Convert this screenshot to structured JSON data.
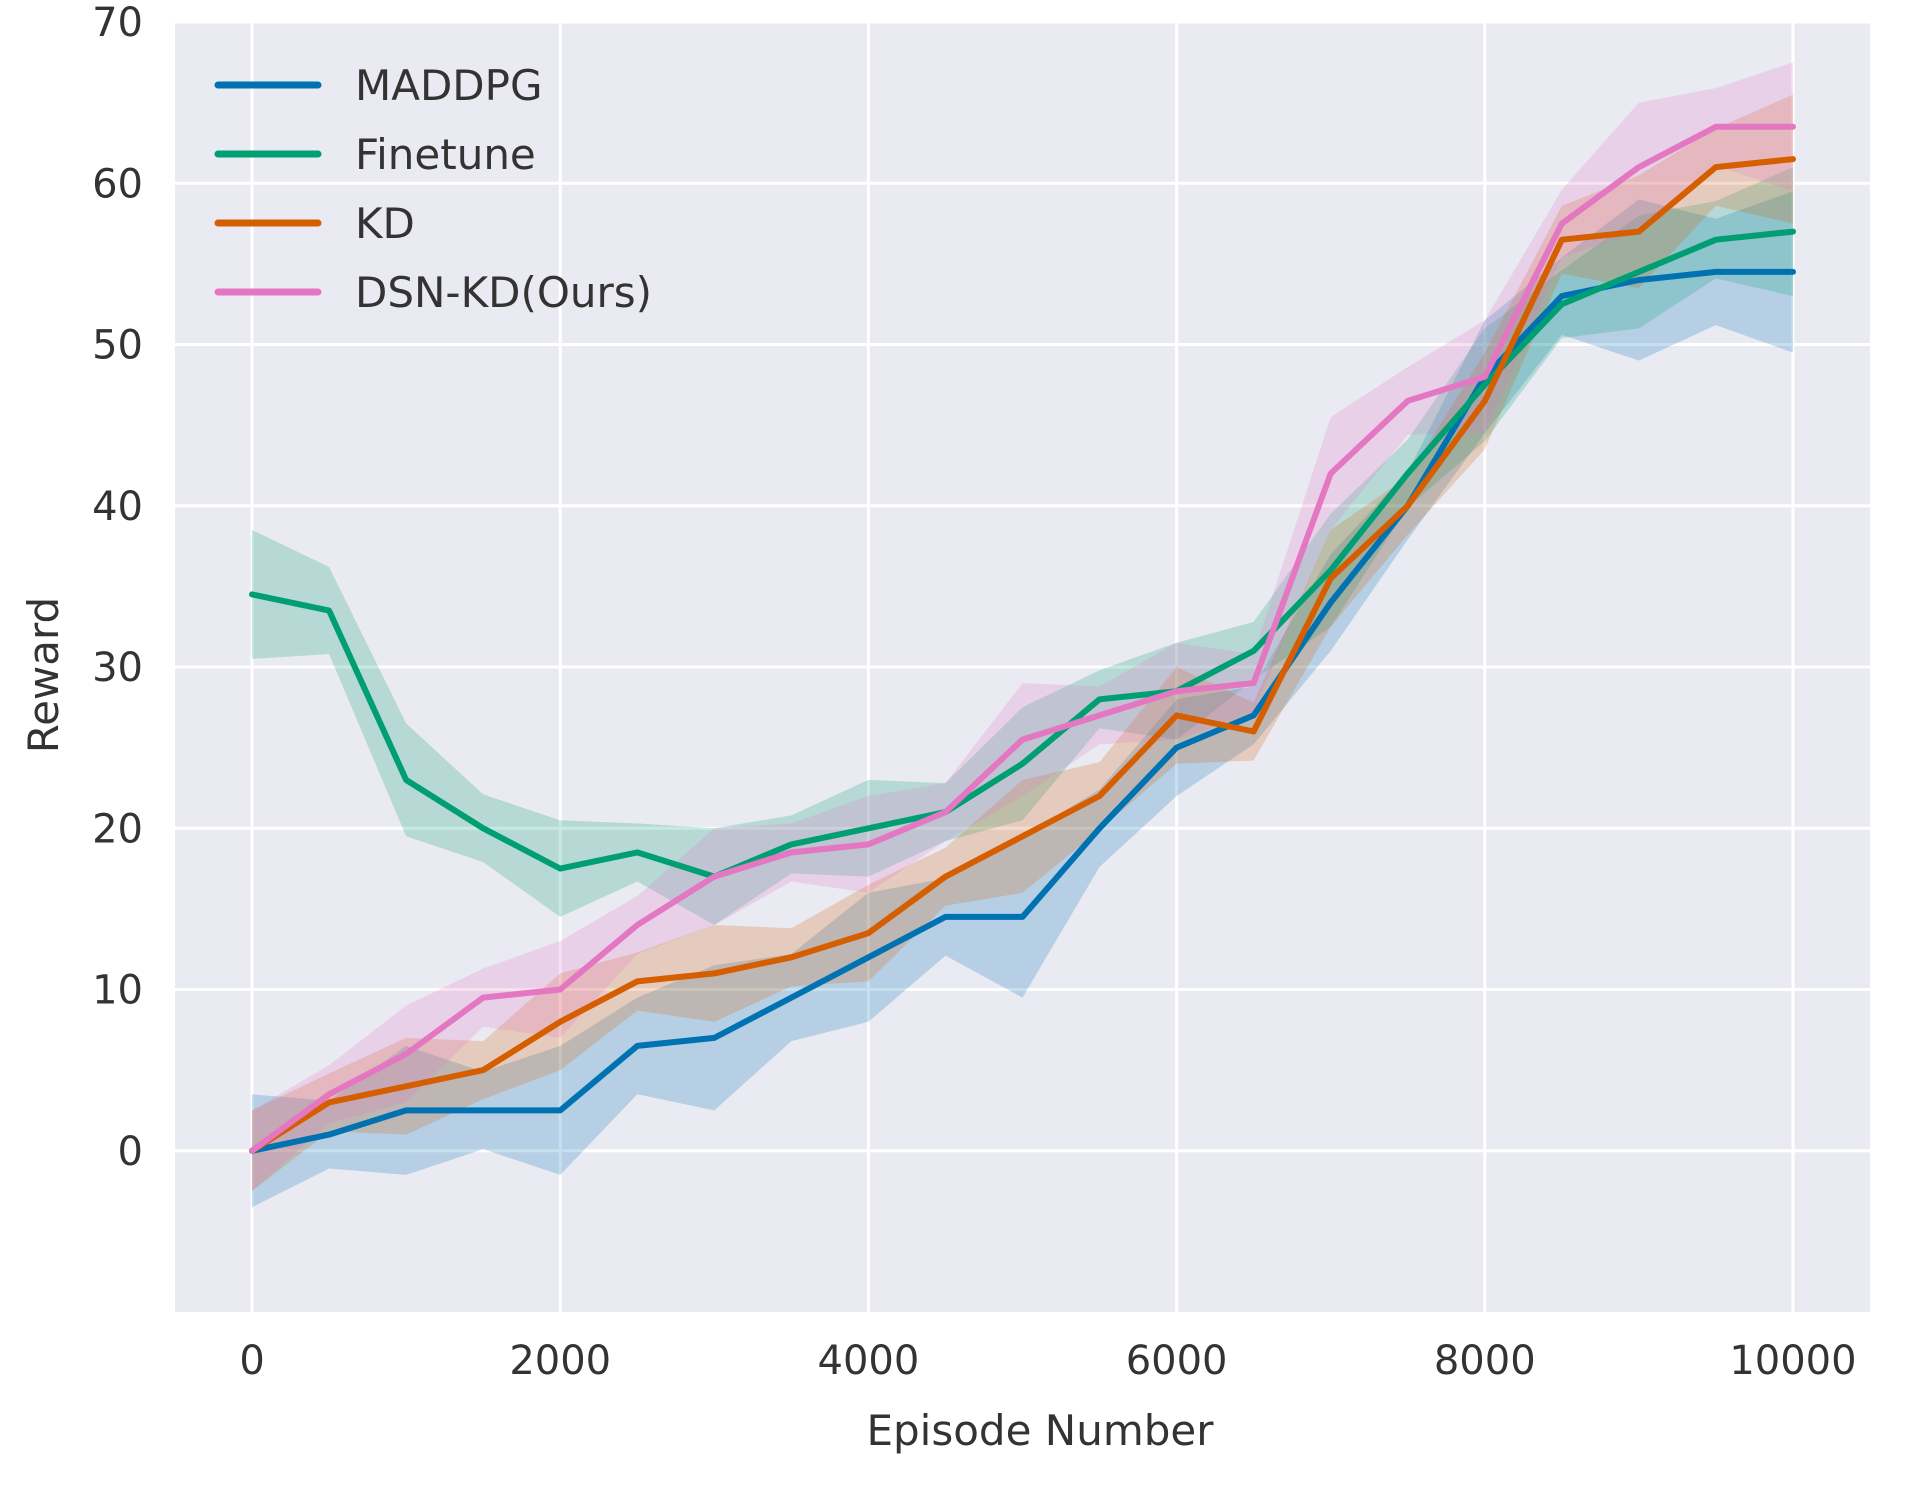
{
  "chart_data": {
    "type": "line",
    "title": "",
    "xlabel": "Episode Number",
    "ylabel": "Reward",
    "xlim": [
      -500,
      10500
    ],
    "ylim": [
      -10,
      70
    ],
    "xticks": [
      0,
      2000,
      4000,
      6000,
      8000,
      10000
    ],
    "yticks": [
      0,
      10,
      20,
      30,
      40,
      50,
      60,
      70
    ],
    "xtick_labels": [
      "0",
      "2000",
      "4000",
      "6000",
      "8000",
      "10000"
    ],
    "ytick_labels": [
      "0",
      "10",
      "20",
      "30",
      "40",
      "50",
      "60",
      "70"
    ],
    "grid": true,
    "legend_position": "top-left",
    "x": [
      0,
      500,
      1000,
      1500,
      2000,
      2500,
      3000,
      3500,
      4000,
      4500,
      5000,
      5500,
      6000,
      6500,
      7000,
      7500,
      8000,
      8500,
      9000,
      9500,
      10000
    ],
    "series": [
      {
        "name": "MADDPG",
        "color": "#0072B2",
        "values": [
          0,
          1,
          2.5,
          2.5,
          2.5,
          6.5,
          7,
          9.5,
          12,
          14.5,
          14.5,
          20,
          25,
          27,
          34,
          40,
          48,
          53,
          54,
          54.5,
          54.5
        ],
        "band": [
          3.5,
          3.5,
          4,
          4,
          4,
          5,
          4.5,
          4.5,
          4,
          4,
          5,
          4,
          3,
          3,
          3,
          3.5,
          3.5,
          4,
          5,
          5.5,
          5
        ]
      },
      {
        "name": "Finetune",
        "color": "#009E73",
        "values": [
          34.5,
          33.5,
          23,
          20,
          17.5,
          18.5,
          17,
          19,
          20,
          21,
          24,
          28,
          28.5,
          31,
          36,
          42,
          47.5,
          52.5,
          54.5,
          56.5,
          57
        ],
        "band": [
          4,
          4.5,
          3.5,
          3.5,
          3,
          3,
          3,
          3,
          3,
          3,
          3.5,
          3,
          3,
          3,
          3.5,
          3.5,
          3.5,
          3.5,
          3.5,
          4,
          4
        ]
      },
      {
        "name": "KD",
        "color": "#D55E00",
        "values": [
          0,
          3,
          4,
          5,
          8,
          10.5,
          11,
          12,
          13.5,
          17,
          19.5,
          22,
          27,
          26,
          35.5,
          40,
          46.5,
          56.5,
          57,
          61,
          61.5
        ],
        "band": [
          2.5,
          3,
          3,
          3,
          3,
          3,
          3,
          3,
          3,
          3,
          3.5,
          3.5,
          3,
          3,
          3,
          3,
          3,
          3.5,
          3.5,
          4,
          4
        ]
      },
      {
        "name": "DSN-KD(Ours)",
        "color": "#E377C2",
        "values": [
          0,
          3.5,
          6,
          9.5,
          10,
          14,
          17,
          18.5,
          19,
          21,
          25.5,
          27,
          28.5,
          29,
          42,
          46.5,
          48,
          57.5,
          61,
          63.5,
          63.5
        ],
        "band": [
          2.5,
          3,
          3,
          3,
          3,
          3,
          3,
          3,
          3,
          3,
          3.5,
          3,
          3,
          3,
          3.5,
          3.5,
          3.5,
          3.5,
          4,
          4,
          4
        ]
      }
    ]
  }
}
